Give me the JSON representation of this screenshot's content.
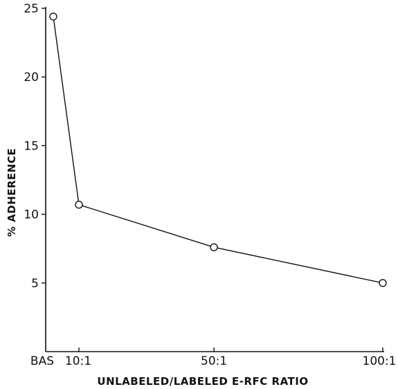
{
  "chart_data": {
    "type": "line",
    "xlabel": "UNLABELED/LABELED E-RFC RATIO",
    "ylabel": "% ADHERENCE",
    "x_ticks": [
      {
        "label": "BAS",
        "x": 0
      },
      {
        "label": "10:1",
        "x": 10
      },
      {
        "label": "50:1",
        "x": 50
      },
      {
        "label": "100:1",
        "x": 100
      }
    ],
    "y_ticks": [
      5,
      10,
      15,
      20,
      25
    ],
    "xlim": [
      0,
      100
    ],
    "ylim": [
      0,
      25
    ],
    "grid": false,
    "series": [
      {
        "points": [
          {
            "x": 0,
            "y": 24.4
          },
          {
            "x": 10,
            "y": 10.7
          },
          {
            "x": 50,
            "y": 7.6
          },
          {
            "x": 100,
            "y": 5.0
          }
        ]
      }
    ]
  }
}
